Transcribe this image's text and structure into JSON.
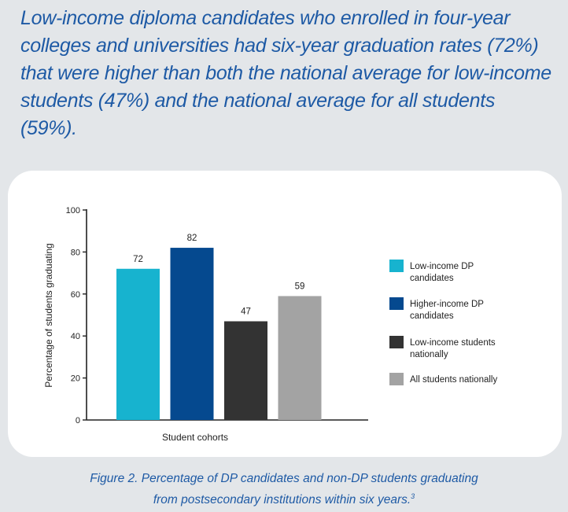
{
  "headline": "Low-income diploma candidates who enrolled in four-year colleges and universities had six-year graduation rates (72%) that were higher than both the national average for low-income students (47%) and the national average for all students (59%).",
  "caption": {
    "line1": "Figure 2. Percentage of DP candidates and non-DP students graduating",
    "line2": "from postsecondary institutions within six years.",
    "footnote": "3"
  },
  "chart_data": {
    "type": "bar",
    "xlabel": "Student cohorts",
    "ylabel": "Percentage of students graduating",
    "ylim": [
      0,
      100
    ],
    "yticks": [
      0,
      20,
      40,
      60,
      80,
      100
    ],
    "grid": false,
    "legend_position": "right",
    "series": [
      {
        "name": "Low-income DP candidates",
        "legend_lines": [
          "Low-income DP",
          "candidates"
        ],
        "value": 72,
        "color": "#17b3cf"
      },
      {
        "name": "Higher-income DP candidates",
        "legend_lines": [
          "Higher-income DP",
          "candidates"
        ],
        "value": 82,
        "color": "#05498f"
      },
      {
        "name": "Low-income students nationally",
        "legend_lines": [
          "Low-income students",
          "nationally"
        ],
        "value": 47,
        "color": "#333333"
      },
      {
        "name": "All students nationally",
        "legend_lines": [
          "All students nationally"
        ],
        "value": 59,
        "color": "#a3a3a3"
      }
    ]
  }
}
